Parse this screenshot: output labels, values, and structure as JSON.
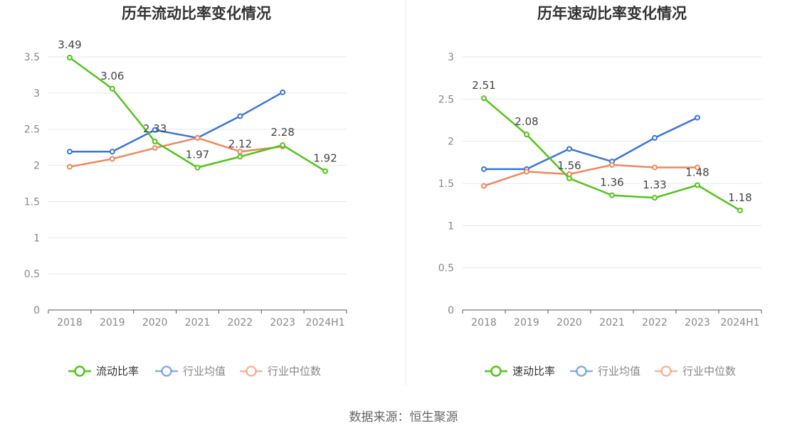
{
  "colors": {
    "primary": "#52c41a",
    "avg": "#3a75d9",
    "median": "#f0875a",
    "axis_text": "#888888",
    "grid": "#e5e7ef",
    "axis_line": "#555555",
    "title": "#333333",
    "label": "#444444",
    "divider": "#e8e8e8"
  },
  "source_text": "数据来源：恒生聚源",
  "chart_data": [
    {
      "type": "line",
      "title": "历年流动比率变化情况",
      "categories": [
        "2018",
        "2019",
        "2020",
        "2021",
        "2022",
        "2023",
        "2024H1"
      ],
      "ylim": [
        0,
        3.5
      ],
      "yticks": [
        "0",
        "0.5",
        "1",
        "1.5",
        "2",
        "2.5",
        "3",
        "3.5"
      ],
      "grid": true,
      "legend": "bottom",
      "series": [
        {
          "name": "流动比率",
          "color": "#52c41a",
          "labeled": true,
          "values": [
            3.49,
            3.06,
            2.33,
            1.97,
            2.12,
            2.28,
            1.92
          ],
          "labels": [
            "3.49",
            "3.06",
            "2.33",
            "1.97",
            "2.12",
            "2.28",
            "1.92"
          ]
        },
        {
          "name": "行业均值",
          "color": "#3a75d9",
          "labeled": false,
          "values": [
            2.19,
            2.19,
            2.49,
            2.38,
            2.68,
            3.01,
            null
          ]
        },
        {
          "name": "行业中位数",
          "color": "#f0875a",
          "labeled": false,
          "values": [
            1.98,
            2.09,
            2.24,
            2.38,
            2.19,
            2.26,
            null
          ]
        }
      ]
    },
    {
      "type": "line",
      "title": "历年速动比率变化情况",
      "categories": [
        "2018",
        "2019",
        "2020",
        "2021",
        "2022",
        "2023",
        "2024H1"
      ],
      "ylim": [
        0,
        3
      ],
      "yticks": [
        "0",
        "0.5",
        "1",
        "1.5",
        "2",
        "2.5",
        "3"
      ],
      "grid": true,
      "legend": "bottom",
      "series": [
        {
          "name": "速动比率",
          "color": "#52c41a",
          "labeled": true,
          "values": [
            2.51,
            2.08,
            1.56,
            1.36,
            1.33,
            1.48,
            1.18
          ],
          "labels": [
            "2.51",
            "2.08",
            "1.56",
            "1.36",
            "1.33",
            "1.48",
            "1.18"
          ]
        },
        {
          "name": "行业均值",
          "color": "#3a75d9",
          "labeled": false,
          "values": [
            1.67,
            1.67,
            1.91,
            1.76,
            2.04,
            2.28,
            null
          ]
        },
        {
          "name": "行业中位数",
          "color": "#f0875a",
          "labeled": false,
          "values": [
            1.47,
            1.64,
            1.61,
            1.72,
            1.69,
            1.69,
            null
          ]
        }
      ]
    }
  ]
}
